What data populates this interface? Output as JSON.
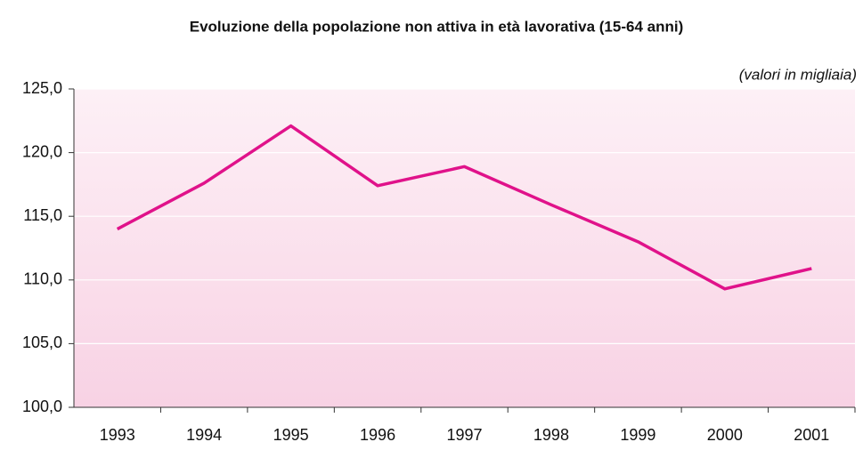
{
  "chart_data": {
    "type": "line",
    "title": "Evoluzione della popolazione non attiva in età lavorativa (15-64 anni)",
    "unit_note": "(valori in migliaia)",
    "categories": [
      "1993",
      "1994",
      "1995",
      "1996",
      "1997",
      "1998",
      "1999",
      "2000",
      "2001"
    ],
    "series": [
      {
        "color": "#e0128a",
        "values": [
          114.0,
          117.6,
          122.1,
          117.4,
          118.9,
          115.9,
          113.0,
          109.3,
          110.9
        ]
      }
    ],
    "ylim": [
      100,
      125
    ],
    "yticks": [
      {
        "value": 100,
        "label": "100,0"
      },
      {
        "value": 105,
        "label": "105,0"
      },
      {
        "value": 110,
        "label": "110,0"
      },
      {
        "value": 115,
        "label": "115,0"
      },
      {
        "value": 120,
        "label": "120,0"
      },
      {
        "value": 125,
        "label": "125,0"
      }
    ],
    "grid": true
  }
}
